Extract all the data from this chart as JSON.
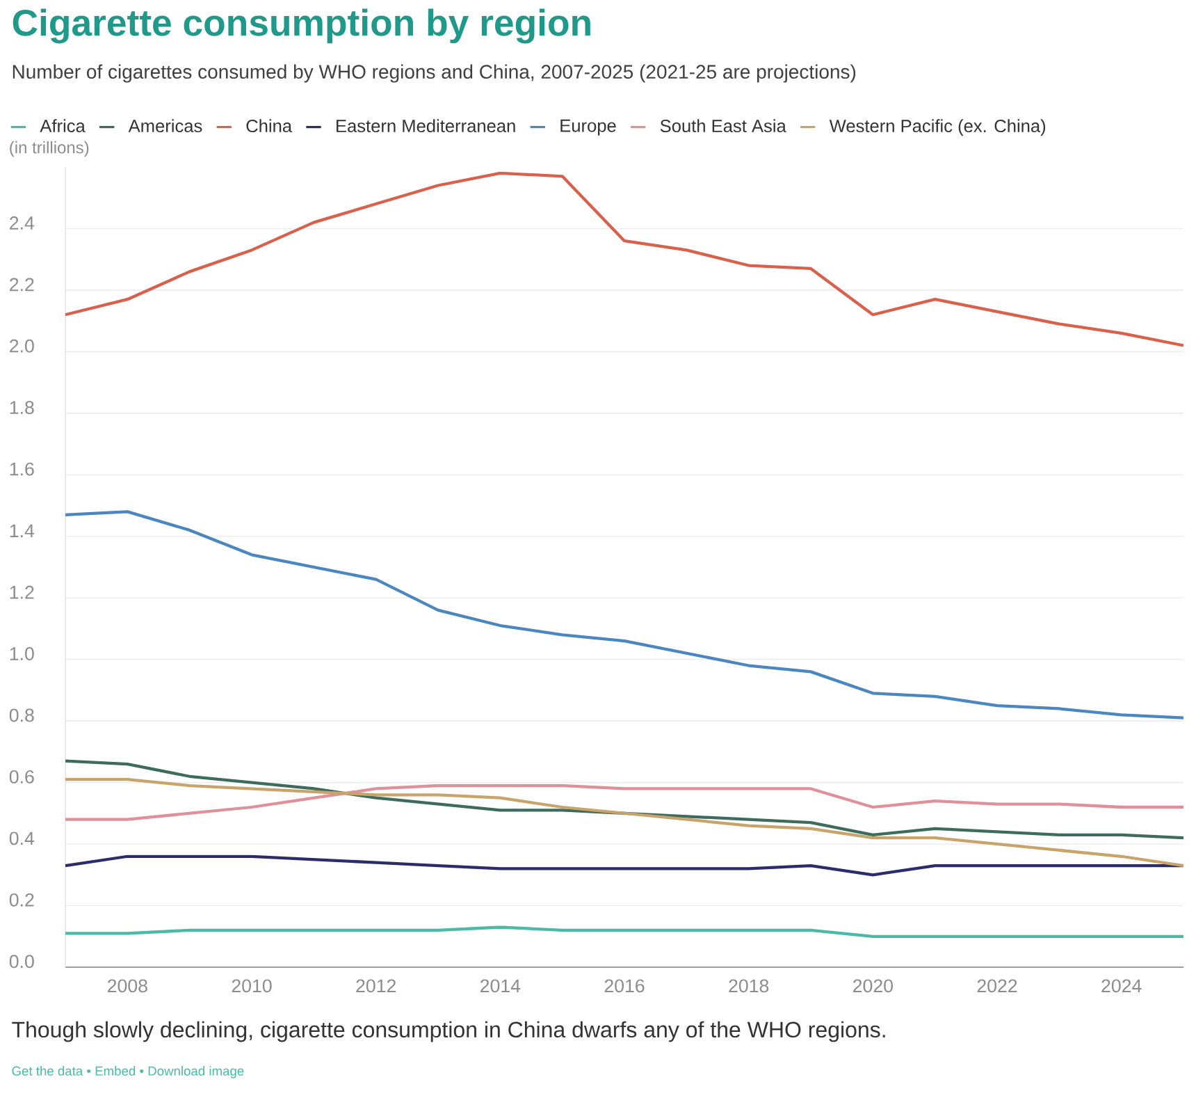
{
  "chart_data": {
    "type": "line",
    "title": "Cigarette consumption by region",
    "subtitle": "Number of cigarettes consumed by WHO regions and China, 2007-2025 (2021-25 are projections)",
    "ylabel": "(in trillions)",
    "annotations": [
      "Though slowly declining, cigarette consumption in China dwarfs any of the WHO regions.",
      "Get the data • Embed • Download image"
    ],
    "x": [
      2007,
      2008,
      2009,
      2010,
      2011,
      2012,
      2013,
      2014,
      2015,
      2016,
      2017,
      2018,
      2019,
      2020,
      2021,
      2022,
      2023,
      2024,
      2025
    ],
    "xlim": [
      2007,
      2025
    ],
    "xticks": [
      2008,
      2010,
      2012,
      2014,
      2016,
      2018,
      2020,
      2022,
      2024
    ],
    "ylim": [
      0,
      2.6
    ],
    "yticks": [
      {
        "value": 0,
        "label": "0.0"
      },
      0.2,
      0.4,
      0.6,
      0.8,
      {
        "value": 1,
        "label": "1.0"
      },
      1.2,
      1.4,
      1.6,
      1.8,
      {
        "value": 2,
        "label": "2.0"
      },
      2.2,
      2.4
    ],
    "grid": "y",
    "legend": "top",
    "series": [
      {
        "name": "Africa",
        "color": "#4ab9a6",
        "values": [
          0.11,
          0.11,
          0.12,
          0.12,
          0.12,
          0.12,
          0.12,
          0.13,
          0.12,
          0.12,
          0.12,
          0.12,
          0.12,
          0.1,
          0.1,
          0.1,
          0.1,
          0.1,
          0.1
        ]
      },
      {
        "name": "Americas",
        "color": "#3d6b5e",
        "values": [
          0.67,
          0.66,
          0.62,
          0.6,
          0.58,
          0.55,
          0.53,
          0.51,
          0.51,
          0.5,
          0.49,
          0.48,
          0.47,
          0.43,
          0.45,
          0.44,
          0.43,
          0.43,
          0.42
        ]
      },
      {
        "name": "China",
        "color": "#d9604a",
        "values": [
          2.12,
          2.17,
          2.26,
          2.33,
          2.42,
          2.48,
          2.54,
          2.58,
          2.57,
          2.36,
          2.33,
          2.28,
          2.27,
          2.12,
          2.17,
          2.13,
          2.09,
          2.06,
          2.02
        ]
      },
      {
        "name": "Eastern Mediterranean",
        "color": "#2b2d6b",
        "values": [
          0.33,
          0.36,
          0.36,
          0.36,
          0.35,
          0.34,
          0.33,
          0.32,
          0.32,
          0.32,
          0.32,
          0.32,
          0.33,
          0.3,
          0.33,
          0.33,
          0.33,
          0.33,
          0.33
        ]
      },
      {
        "name": "Europe",
        "color": "#4a86c0",
        "values": [
          1.47,
          1.48,
          1.42,
          1.34,
          1.3,
          1.26,
          1.16,
          1.11,
          1.08,
          1.06,
          1.02,
          0.98,
          0.96,
          0.89,
          0.88,
          0.85,
          0.84,
          0.82,
          0.81
        ]
      },
      {
        "name": "South East Asia",
        "color": "#e0909a",
        "values": [
          0.48,
          0.48,
          0.5,
          0.52,
          0.55,
          0.58,
          0.59,
          0.59,
          0.59,
          0.58,
          0.58,
          0.58,
          0.58,
          0.52,
          0.54,
          0.53,
          0.53,
          0.52,
          0.52
        ]
      },
      {
        "name": "Western Pacific (ex. China)",
        "color": "#c9a46a",
        "values": [
          0.61,
          0.61,
          0.59,
          0.58,
          0.57,
          0.56,
          0.56,
          0.55,
          0.52,
          0.5,
          0.48,
          0.46,
          0.45,
          0.42,
          0.42,
          0.4,
          0.38,
          0.36,
          0.33
        ]
      }
    ]
  }
}
